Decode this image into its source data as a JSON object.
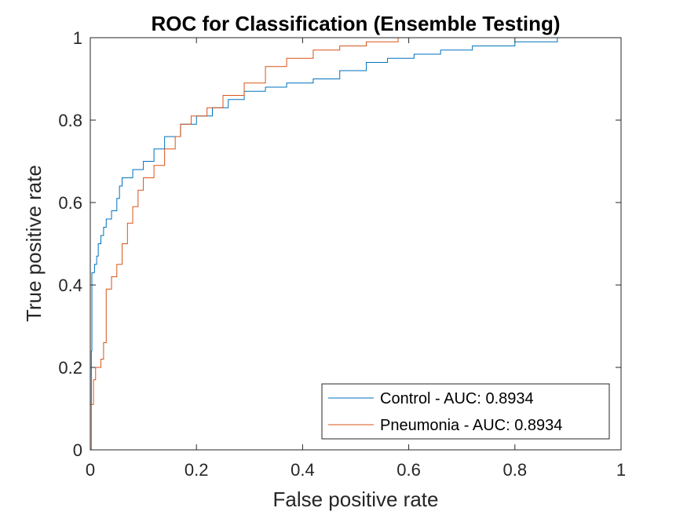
{
  "chart_data": {
    "type": "line",
    "title": "ROC for Classification (Ensemble Testing)",
    "xlabel": "False positive rate",
    "ylabel": "True positive rate",
    "xlim": [
      0,
      1
    ],
    "ylim": [
      0,
      1
    ],
    "xticks": [
      "0",
      "0.2",
      "0.4",
      "0.6",
      "0.8",
      "1"
    ],
    "yticks": [
      "0",
      "0.2",
      "0.4",
      "0.6",
      "0.8",
      "1"
    ],
    "grid": false,
    "legend_position": "bottom-right",
    "series": [
      {
        "name": "Control - AUC: 0.8934",
        "color": "#0072BD",
        "points": [
          [
            0,
            0
          ],
          [
            0,
            0.11
          ],
          [
            0.002,
            0.24
          ],
          [
            0.003,
            0.43
          ],
          [
            0.008,
            0.45
          ],
          [
            0.012,
            0.47
          ],
          [
            0.015,
            0.5
          ],
          [
            0.02,
            0.52
          ],
          [
            0.025,
            0.54
          ],
          [
            0.03,
            0.56
          ],
          [
            0.04,
            0.58
          ],
          [
            0.05,
            0.61
          ],
          [
            0.055,
            0.64
          ],
          [
            0.06,
            0.66
          ],
          [
            0.08,
            0.68
          ],
          [
            0.1,
            0.7
          ],
          [
            0.12,
            0.73
          ],
          [
            0.14,
            0.76
          ],
          [
            0.17,
            0.79
          ],
          [
            0.2,
            0.81
          ],
          [
            0.23,
            0.83
          ],
          [
            0.26,
            0.85
          ],
          [
            0.29,
            0.87
          ],
          [
            0.33,
            0.88
          ],
          [
            0.37,
            0.89
          ],
          [
            0.42,
            0.9
          ],
          [
            0.47,
            0.92
          ],
          [
            0.52,
            0.94
          ],
          [
            0.56,
            0.95
          ],
          [
            0.61,
            0.96
          ],
          [
            0.66,
            0.97
          ],
          [
            0.72,
            0.98
          ],
          [
            0.8,
            0.99
          ],
          [
            0.88,
            1.0
          ],
          [
            1.0,
            1.0
          ]
        ]
      },
      {
        "name": "Pneumonia - AUC: 0.8934",
        "color": "#D95319",
        "points": [
          [
            0,
            0
          ],
          [
            0.002,
            0.11
          ],
          [
            0.006,
            0.17
          ],
          [
            0.01,
            0.2
          ],
          [
            0.02,
            0.22
          ],
          [
            0.025,
            0.26
          ],
          [
            0.03,
            0.39
          ],
          [
            0.04,
            0.42
          ],
          [
            0.05,
            0.45
          ],
          [
            0.06,
            0.5
          ],
          [
            0.07,
            0.55
          ],
          [
            0.08,
            0.59
          ],
          [
            0.09,
            0.63
          ],
          [
            0.1,
            0.66
          ],
          [
            0.12,
            0.69
          ],
          [
            0.14,
            0.73
          ],
          [
            0.16,
            0.76
          ],
          [
            0.17,
            0.79
          ],
          [
            0.19,
            0.81
          ],
          [
            0.22,
            0.83
          ],
          [
            0.25,
            0.86
          ],
          [
            0.29,
            0.89
          ],
          [
            0.33,
            0.93
          ],
          [
            0.37,
            0.95
          ],
          [
            0.42,
            0.97
          ],
          [
            0.47,
            0.98
          ],
          [
            0.52,
            0.99
          ],
          [
            0.58,
            1.0
          ],
          [
            1.0,
            1.0
          ]
        ]
      }
    ]
  }
}
